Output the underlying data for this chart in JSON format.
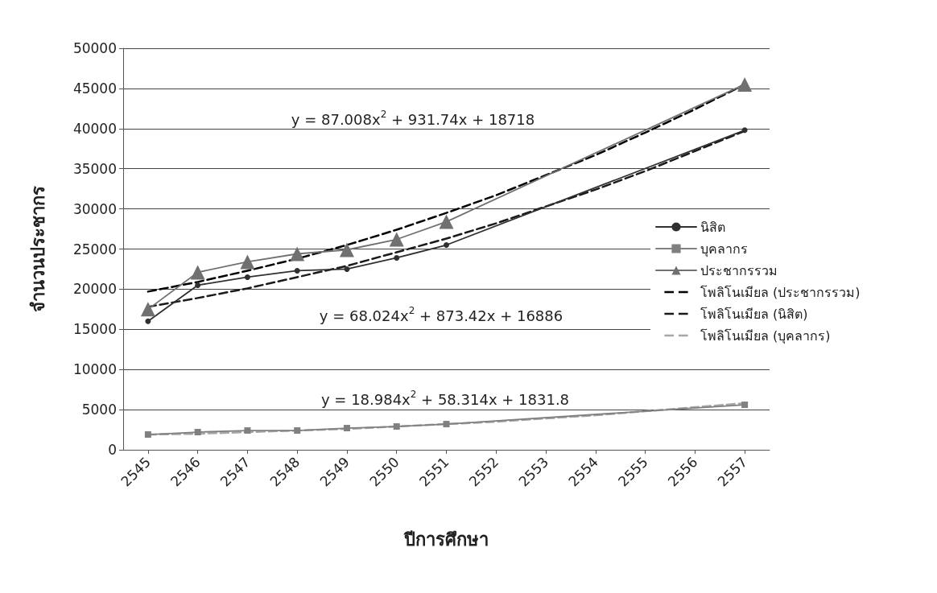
{
  "chart_data": {
    "type": "line",
    "xlabel": "ปีการศึกษา",
    "ylabel": "จำนวนประชากร",
    "categories": [
      "2545",
      "2546",
      "2547",
      "2548",
      "2549",
      "2550",
      "2551",
      "2552",
      "2553",
      "2554",
      "2555",
      "2556",
      "2557"
    ],
    "ylim": [
      0,
      50000
    ],
    "yticks": [
      0,
      5000,
      10000,
      15000,
      20000,
      25000,
      30000,
      35000,
      40000,
      45000,
      50000
    ],
    "grid": "y",
    "legend": "right",
    "series": [
      {
        "name": "นิสิต",
        "color": "#303030",
        "marker": "circle",
        "line_style": "solid",
        "values": [
          16000,
          20500,
          21500,
          22300,
          22500,
          23900,
          25500,
          null,
          null,
          null,
          null,
          null,
          39800
        ]
      },
      {
        "name": "บุคลากร",
        "color": "#808080",
        "marker": "square",
        "line_style": "solid",
        "values": [
          1900,
          2200,
          2400,
          2400,
          2700,
          2900,
          3200,
          null,
          null,
          null,
          null,
          null,
          5600
        ]
      },
      {
        "name": "ประชากรรวม",
        "color": "#707070",
        "marker": "triangle",
        "line_style": "solid",
        "values": [
          17500,
          22100,
          23400,
          24400,
          24900,
          26200,
          28400,
          null,
          null,
          null,
          null,
          null,
          45500
        ]
      },
      {
        "name": "โพลิโนเมียล (ประชากรรวม)",
        "color": "#000000",
        "marker": "none",
        "line_style": "dashed",
        "values": [
          19700,
          20900,
          22300,
          23800,
          25500,
          27400,
          29500,
          31700,
          34200,
          36700,
          39500,
          42400,
          45500
        ]
      },
      {
        "name": "โพลิโนเมียล (นิสิต)",
        "color": "#1a1a1a",
        "marker": "none",
        "line_style": "dashed",
        "values": [
          17800,
          18900,
          20100,
          21500,
          22900,
          24600,
          26300,
          28200,
          30300,
          32400,
          34700,
          37200,
          39700
        ]
      },
      {
        "name": "โพลิโนเมียล (บุคลากร)",
        "color": "#a6a6a6",
        "marker": "none",
        "line_style": "dashed",
        "values": [
          1900,
          2000,
          2200,
          2400,
          2600,
          2900,
          3200,
          3500,
          3900,
          4300,
          4800,
          5300,
          5800
        ]
      }
    ],
    "annotations": [
      "y = 87.008x$^{2}$ + 931.74x + 18718",
      "y = 68.024x$^{2}$ + 873.42x + 16886",
      "y = 18.984x$^{2}$ + 58.314x + 1831.8"
    ]
  }
}
